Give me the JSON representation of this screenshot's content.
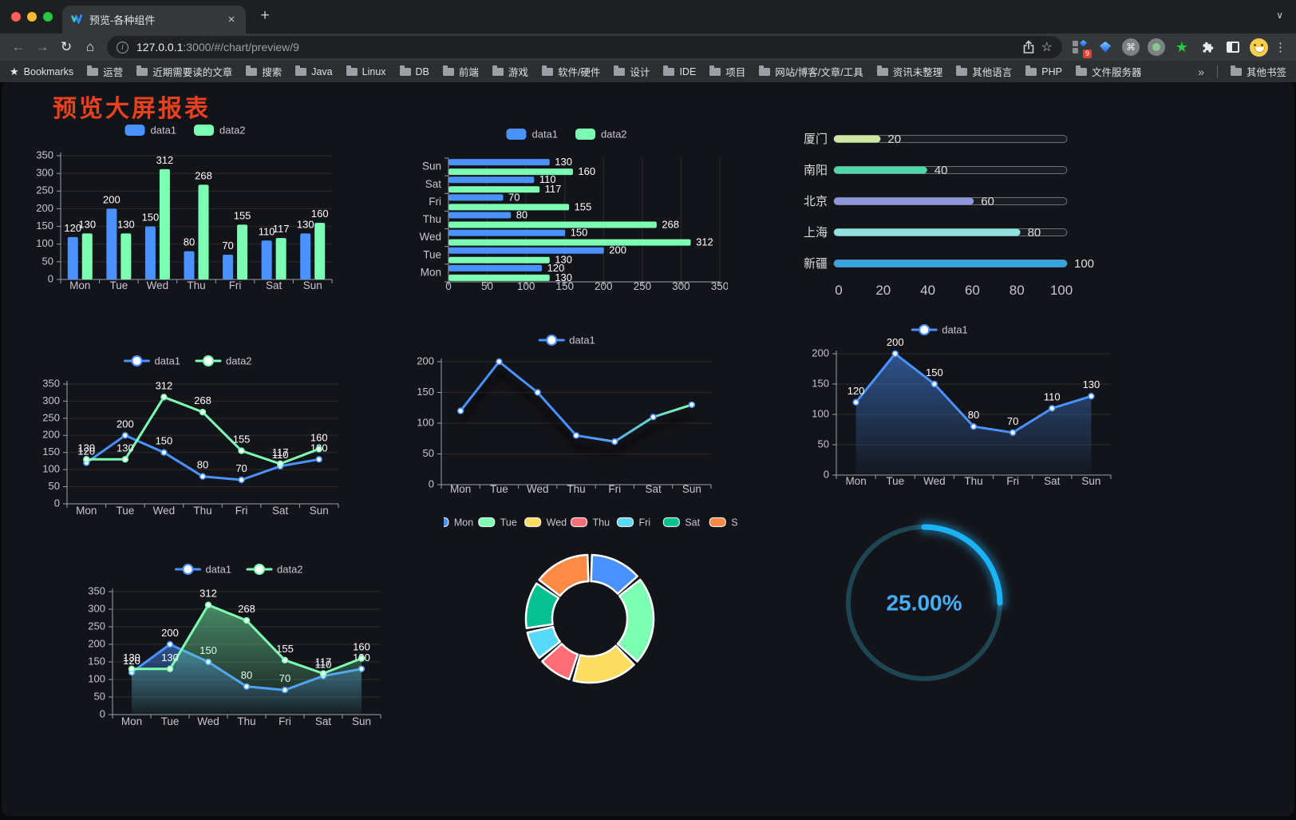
{
  "browser": {
    "tab_title": "预览-各种组件",
    "url_host": "127.0.0.1",
    "url_rest": ":3000/#/chart/preview/9",
    "extension_badge": "9",
    "bookmarks_label": "Bookmarks",
    "bookmark_folders": [
      "运营",
      "近期需要读的文章",
      "搜索",
      "Java",
      "Linux",
      "DB",
      "前端",
      "游戏",
      "软件/硬件",
      "设计",
      "IDE",
      "项目",
      "网站/博客/文章/工具",
      "资讯未整理",
      "其他语言",
      "PHP",
      "文件服务器"
    ],
    "bookmarks_overflow": "»",
    "other_bookmarks": "其他书签"
  },
  "icons": {
    "back": "←",
    "forward": "→",
    "reload": "↻",
    "home": "⌂",
    "info": "i",
    "star": "☆",
    "plus": "+",
    "close": "×",
    "menu": "⋮",
    "chevron_down": "∨",
    "bookmarks_star": "★",
    "cmd": "⌘",
    "green_star": "★"
  },
  "page": {
    "title": "预览大屏报表",
    "title_color": "#e8411f",
    "background": "#131419"
  },
  "chart_data": [
    {
      "id": "bar-vertical",
      "type": "bar",
      "legend_position": "top",
      "grid": true,
      "categories": [
        "Mon",
        "Tue",
        "Wed",
        "Thu",
        "Fri",
        "Sat",
        "Sun"
      ],
      "series": [
        {
          "name": "data1",
          "color": "#4992ff",
          "values": [
            120,
            200,
            150,
            80,
            70,
            110,
            130
          ]
        },
        {
          "name": "data2",
          "color": "#7cffb2",
          "values": [
            130,
            130,
            312,
            268,
            155,
            117,
            160
          ]
        }
      ],
      "ylim": [
        0,
        350
      ],
      "ystep": 50,
      "value_labels": true
    },
    {
      "id": "bar-horizontal",
      "type": "bar",
      "orientation": "horizontal",
      "legend_position": "top",
      "grid": true,
      "categories": [
        "Mon",
        "Tue",
        "Wed",
        "Thu",
        "Fri",
        "Sat",
        "Sun"
      ],
      "series": [
        {
          "name": "data1",
          "color": "#4992ff",
          "values": [
            120,
            200,
            150,
            80,
            70,
            110,
            130
          ]
        },
        {
          "name": "data2",
          "color": "#7cffb2",
          "values": [
            130,
            130,
            312,
            268,
            155,
            117,
            160
          ]
        }
      ],
      "xlim": [
        0,
        350
      ],
      "xstep": 50,
      "value_labels": true
    },
    {
      "id": "progress-bars",
      "type": "bar",
      "subtype": "progress",
      "categories": [
        "厦门",
        "南阳",
        "北京",
        "上海",
        "新疆"
      ],
      "values": [
        20,
        40,
        60,
        80,
        100
      ],
      "colors": [
        "#cbe7a2",
        "#4fd6a9",
        "#8f96db",
        "#90e2e0",
        "#36a6e2"
      ],
      "xlim": [
        0,
        100
      ],
      "xticks": [
        0,
        20,
        40,
        60,
        80,
        100
      ],
      "value_labels": true
    },
    {
      "id": "line-basic",
      "type": "line",
      "legend_position": "top",
      "grid": true,
      "categories": [
        "Mon",
        "Tue",
        "Wed",
        "Thu",
        "Fri",
        "Sat",
        "Sun"
      ],
      "series": [
        {
          "name": "data1",
          "color": "#4992ff",
          "values": [
            120,
            200,
            150,
            80,
            70,
            110,
            130
          ]
        },
        {
          "name": "data2",
          "color": "#7cffb2",
          "values": [
            130,
            130,
            312,
            268,
            155,
            117,
            160
          ]
        }
      ],
      "ylim": [
        0,
        350
      ],
      "ystep": 50,
      "value_labels": true
    },
    {
      "id": "line-gradient",
      "type": "line",
      "legend_position": "top",
      "grid": true,
      "shadow": true,
      "categories": [
        "Mon",
        "Tue",
        "Wed",
        "Thu",
        "Fri",
        "Sat",
        "Sun"
      ],
      "series": [
        {
          "name": "data1",
          "color": "#4992ff",
          "gradient": [
            "#4992ff",
            "#7cffb2"
          ],
          "values": [
            120,
            200,
            150,
            80,
            70,
            110,
            130
          ]
        }
      ],
      "ylim": [
        0,
        200
      ],
      "ystep": 50,
      "value_labels": false
    },
    {
      "id": "area-single",
      "type": "area",
      "legend_position": "top",
      "grid": true,
      "categories": [
        "Mon",
        "Tue",
        "Wed",
        "Thu",
        "Fri",
        "Sat",
        "Sun"
      ],
      "series": [
        {
          "name": "data1",
          "color": "#4992ff",
          "area": true,
          "values": [
            120,
            200,
            150,
            80,
            70,
            110,
            130
          ]
        }
      ],
      "ylim": [
        0,
        200
      ],
      "ystep": 50,
      "value_labels": true
    },
    {
      "id": "area-double",
      "type": "area",
      "legend_position": "top",
      "grid": true,
      "categories": [
        "Mon",
        "Tue",
        "Wed",
        "Thu",
        "Fri",
        "Sat",
        "Sun"
      ],
      "series": [
        {
          "name": "data1",
          "color": "#4992ff",
          "area": true,
          "values": [
            120,
            200,
            150,
            80,
            70,
            110,
            130
          ]
        },
        {
          "name": "data2",
          "color": "#7cffb2",
          "area": true,
          "values": [
            130,
            130,
            312,
            268,
            155,
            117,
            160
          ]
        }
      ],
      "ylim": [
        0,
        350
      ],
      "ystep": 50,
      "value_labels": true
    },
    {
      "id": "donut",
      "type": "pie",
      "legend_position": "top",
      "inner_radius_pct": 59,
      "categories": [
        "Mon",
        "Tue",
        "Wed",
        "Thu",
        "Fri",
        "Sat",
        "Sun"
      ],
      "values": [
        120,
        200,
        150,
        80,
        70,
        110,
        130
      ],
      "colors": [
        "#4992ff",
        "#7cffb2",
        "#fddd60",
        "#ff6e76",
        "#58d9f9",
        "#05c091",
        "#ff8a45"
      ],
      "border_color": "#ffffff"
    },
    {
      "id": "gauge",
      "type": "gauge",
      "value": 25,
      "min": 0,
      "max": 100,
      "display": "25.00%",
      "color": "#1ab3f8",
      "track_color": "#1d4652",
      "text_color": "#47aef5"
    }
  ]
}
